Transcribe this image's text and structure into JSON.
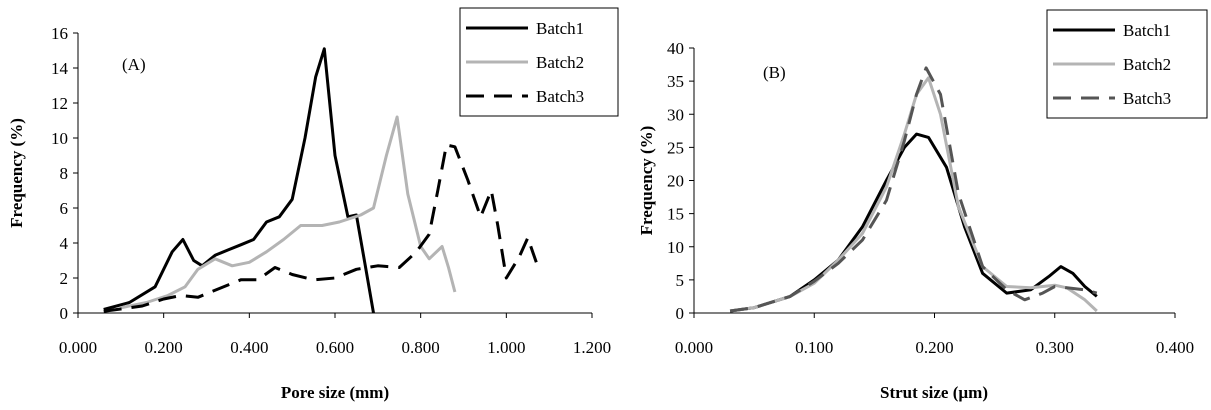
{
  "chart_data": [
    {
      "type": "line",
      "panel_label": "(A)",
      "xlabel": "Pore size (mm)",
      "ylabel": "Frequency (%)",
      "xlim": [
        0,
        1.2
      ],
      "ylim": [
        0,
        16
      ],
      "xticks": [
        "0.000",
        "0.200",
        "0.400",
        "0.600",
        "0.800",
        "1.000",
        "1.200"
      ],
      "yticks": [
        "0",
        "2",
        "4",
        "6",
        "8",
        "10",
        "12",
        "14",
        "16"
      ],
      "grid": false,
      "legend_position": "top-right",
      "series": [
        {
          "name": "Batch1",
          "color": "#000000",
          "dash": "solid",
          "points": [
            [
              0.06,
              0.2
            ],
            [
              0.12,
              0.6
            ],
            [
              0.18,
              1.5
            ],
            [
              0.22,
              3.5
            ],
            [
              0.245,
              4.2
            ],
            [
              0.27,
              3.0
            ],
            [
              0.29,
              2.7
            ],
            [
              0.32,
              3.3
            ],
            [
              0.35,
              3.6
            ],
            [
              0.38,
              3.9
            ],
            [
              0.41,
              4.2
            ],
            [
              0.44,
              5.2
            ],
            [
              0.47,
              5.5
            ],
            [
              0.5,
              6.5
            ],
            [
              0.53,
              10.0
            ],
            [
              0.555,
              13.5
            ],
            [
              0.575,
              15.1
            ],
            [
              0.6,
              9.0
            ],
            [
              0.63,
              5.5
            ],
            [
              0.65,
              5.6
            ],
            [
              0.67,
              2.8
            ],
            [
              0.69,
              0.0
            ]
          ]
        },
        {
          "name": "Batch2",
          "color": "#b4b4b4",
          "dash": "solid",
          "points": [
            [
              0.1,
              0.3
            ],
            [
              0.16,
              0.6
            ],
            [
              0.21,
              1.0
            ],
            [
              0.25,
              1.5
            ],
            [
              0.28,
              2.5
            ],
            [
              0.32,
              3.1
            ],
            [
              0.36,
              2.7
            ],
            [
              0.4,
              2.9
            ],
            [
              0.44,
              3.5
            ],
            [
              0.48,
              4.2
            ],
            [
              0.52,
              5.0
            ],
            [
              0.57,
              5.0
            ],
            [
              0.61,
              5.2
            ],
            [
              0.66,
              5.6
            ],
            [
              0.69,
              6.0
            ],
            [
              0.72,
              9.0
            ],
            [
              0.745,
              11.2
            ],
            [
              0.77,
              6.8
            ],
            [
              0.8,
              3.8
            ],
            [
              0.82,
              3.1
            ],
            [
              0.85,
              3.8
            ],
            [
              0.865,
              2.6
            ],
            [
              0.88,
              1.2
            ]
          ]
        },
        {
          "name": "Batch3",
          "color": "#000000",
          "dash": "dash",
          "points": [
            [
              0.06,
              0.1
            ],
            [
              0.15,
              0.4
            ],
            [
              0.2,
              0.8
            ],
            [
              0.24,
              1.0
            ],
            [
              0.28,
              0.9
            ],
            [
              0.33,
              1.4
            ],
            [
              0.38,
              1.9
            ],
            [
              0.42,
              1.9
            ],
            [
              0.46,
              2.6
            ],
            [
              0.5,
              2.2
            ],
            [
              0.55,
              1.9
            ],
            [
              0.6,
              2.0
            ],
            [
              0.65,
              2.5
            ],
            [
              0.7,
              2.7
            ],
            [
              0.75,
              2.6
            ],
            [
              0.79,
              3.5
            ],
            [
              0.82,
              4.5
            ],
            [
              0.84,
              7.0
            ],
            [
              0.86,
              9.6
            ],
            [
              0.88,
              9.5
            ],
            [
              0.91,
              7.6
            ],
            [
              0.94,
              5.5
            ],
            [
              0.965,
              7.0
            ],
            [
              0.98,
              5.0
            ],
            [
              1.0,
              2.0
            ],
            [
              1.03,
              3.2
            ],
            [
              1.05,
              4.3
            ],
            [
              1.07,
              2.9
            ]
          ]
        }
      ]
    },
    {
      "type": "line",
      "panel_label": "(B)",
      "xlabel": "Strut size (µm)",
      "ylabel": "Frequency (%)",
      "xlim": [
        0,
        0.4
      ],
      "ylim": [
        0,
        40
      ],
      "xticks": [
        "0.000",
        "0.100",
        "0.200",
        "0.300",
        "0.400"
      ],
      "yticks": [
        "0",
        "5",
        "10",
        "15",
        "20",
        "25",
        "30",
        "35",
        "40"
      ],
      "grid": false,
      "legend_position": "top-right",
      "series": [
        {
          "name": "Batch1",
          "color": "#000000",
          "dash": "solid",
          "points": [
            [
              0.03,
              0.3
            ],
            [
              0.05,
              0.8
            ],
            [
              0.08,
              2.5
            ],
            [
              0.1,
              5.0
            ],
            [
              0.12,
              8.0
            ],
            [
              0.14,
              13.0
            ],
            [
              0.16,
              20.0
            ],
            [
              0.175,
              25.0
            ],
            [
              0.185,
              27.0
            ],
            [
              0.195,
              26.5
            ],
            [
              0.21,
              22.0
            ],
            [
              0.225,
              13.0
            ],
            [
              0.24,
              6.0
            ],
            [
              0.26,
              3.0
            ],
            [
              0.28,
              3.5
            ],
            [
              0.295,
              5.5
            ],
            [
              0.305,
              7.0
            ],
            [
              0.315,
              6.0
            ],
            [
              0.325,
              4.0
            ],
            [
              0.335,
              2.5
            ]
          ]
        },
        {
          "name": "Batch2",
          "color": "#b4b4b4",
          "dash": "solid",
          "points": [
            [
              0.03,
              0.3
            ],
            [
              0.05,
              0.8
            ],
            [
              0.08,
              2.5
            ],
            [
              0.1,
              4.5
            ],
            [
              0.12,
              8.0
            ],
            [
              0.14,
              12.0
            ],
            [
              0.16,
              19.0
            ],
            [
              0.175,
              27.0
            ],
            [
              0.185,
              33.0
            ],
            [
              0.195,
              35.5
            ],
            [
              0.205,
              30.0
            ],
            [
              0.22,
              16.0
            ],
            [
              0.24,
              7.0
            ],
            [
              0.26,
              4.0
            ],
            [
              0.28,
              3.8
            ],
            [
              0.3,
              4.2
            ],
            [
              0.31,
              3.8
            ],
            [
              0.325,
              2.0
            ],
            [
              0.335,
              0.3
            ]
          ]
        },
        {
          "name": "Batch3",
          "color": "#555555",
          "dash": "dash",
          "points": [
            [
              0.03,
              0.3
            ],
            [
              0.05,
              0.8
            ],
            [
              0.08,
              2.5
            ],
            [
              0.1,
              4.8
            ],
            [
              0.12,
              7.5
            ],
            [
              0.14,
              11.0
            ],
            [
              0.16,
              17.0
            ],
            [
              0.175,
              26.0
            ],
            [
              0.185,
              33.0
            ],
            [
              0.193,
              37.0
            ],
            [
              0.205,
              33.0
            ],
            [
              0.22,
              18.0
            ],
            [
              0.24,
              7.0
            ],
            [
              0.26,
              3.5
            ],
            [
              0.275,
              2.0
            ],
            [
              0.29,
              3.0
            ],
            [
              0.3,
              4.0
            ],
            [
              0.31,
              3.8
            ],
            [
              0.325,
              3.5
            ],
            [
              0.335,
              3.0
            ]
          ]
        }
      ]
    }
  ]
}
